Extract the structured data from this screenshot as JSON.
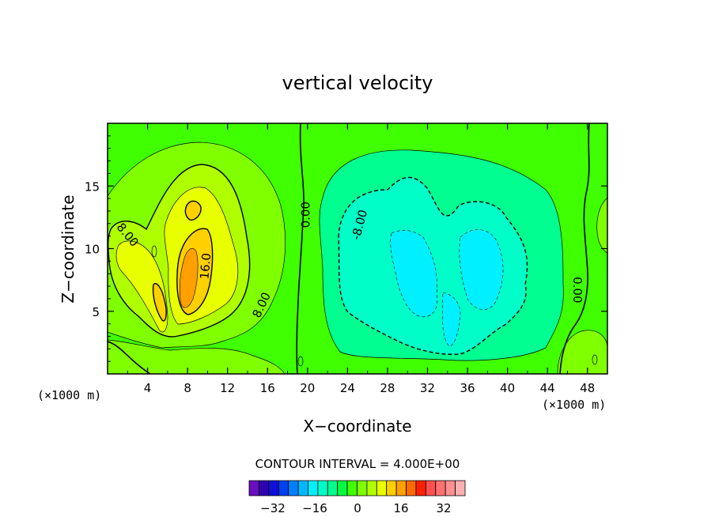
{
  "chart_data": {
    "type": "heatmap",
    "subtype": "filled-contour",
    "title": "vertical velocity",
    "xlabel": "X−coordinate",
    "ylabel": "Z−coordinate",
    "x_unit_left": "(×1000 m)",
    "x_unit_right": "(×1000 m)",
    "xlim": [
      0,
      50
    ],
    "ylim": [
      0,
      20
    ],
    "x_ticks": [
      4,
      8,
      12,
      16,
      20,
      24,
      28,
      32,
      36,
      40,
      44,
      48
    ],
    "y_ticks": [
      5,
      10,
      15
    ],
    "contour_interval_text": "CONTOUR INTERVAL = 4.000E+00",
    "contour_labels": [
      {
        "text": "8.00",
        "x": 2.0,
        "y": 11.1,
        "rotate": 50
      },
      {
        "text": "16.0",
        "x": 9.8,
        "y": 8.6,
        "rotate": -85
      },
      {
        "text": "8.00",
        "x": 15.4,
        "y": 5.5,
        "rotate": -65
      },
      {
        "text": "0.00",
        "x": 19.8,
        "y": 12.7,
        "rotate": -90
      },
      {
        "text": "-8.00",
        "x": 25.2,
        "y": 11.9,
        "rotate": -75
      },
      {
        "text": "0.00",
        "x": 47.0,
        "y": 6.7,
        "rotate": 90
      }
    ],
    "features": [
      {
        "sign": "positive",
        "peak_value": 20,
        "x_range": [
          1,
          17
        ],
        "z_range": [
          1,
          18
        ],
        "center": [
          8,
          8
        ]
      },
      {
        "sign": "negative",
        "peak_value": -16,
        "x_range": [
          22,
          46
        ],
        "z_range": [
          1,
          17.5
        ],
        "center": [
          33,
          9
        ]
      }
    ],
    "colorbar": {
      "tick_labels": [
        "−32",
        "−16",
        "0",
        "16",
        "32"
      ],
      "colors": [
        "#6a0fbf",
        "#2f00b0",
        "#1010d8",
        "#0040f0",
        "#0080ff",
        "#00b8ff",
        "#00f0ff",
        "#00ffc8",
        "#00ff90",
        "#00ff40",
        "#40ff00",
        "#80ff00",
        "#b0ff00",
        "#e8ff00",
        "#ffd000",
        "#ffa000",
        "#ff6a00",
        "#ff2000",
        "#ff5050",
        "#ff7070",
        "#ff9090",
        "#ffb0b0"
      ]
    }
  }
}
